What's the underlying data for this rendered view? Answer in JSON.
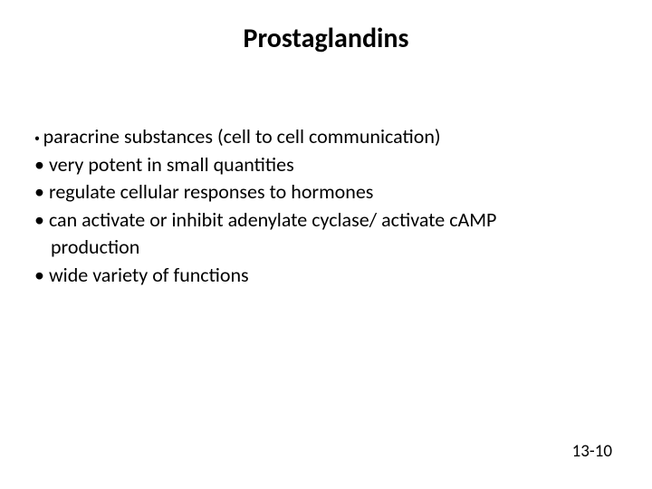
{
  "slide": {
    "title": "Prostaglandins",
    "title_fontsize": 30,
    "title_color": "#000000",
    "background_color": "#ffffff",
    "bullets": [
      {
        "text": "paracrine substances (cell to cell communication)",
        "bullet_style": "small",
        "fontsize": 22
      },
      {
        "text": "very potent in small quantities",
        "bullet_style": "normal",
        "fontsize": 22
      },
      {
        "text": "regulate cellular responses to hormones",
        "bullet_style": "normal",
        "fontsize": 22
      },
      {
        "text": "can activate or inhibit adenylate cyclase/ activate cAMP",
        "bullet_style": "normal",
        "fontsize": 22
      },
      {
        "text": "production",
        "bullet_style": "continuation",
        "fontsize": 22
      },
      {
        "text": "wide variety of functions",
        "bullet_style": "normal",
        "fontsize": 22
      }
    ],
    "page_number": "13-10",
    "page_number_fontsize": 19,
    "text_color": "#000000"
  }
}
